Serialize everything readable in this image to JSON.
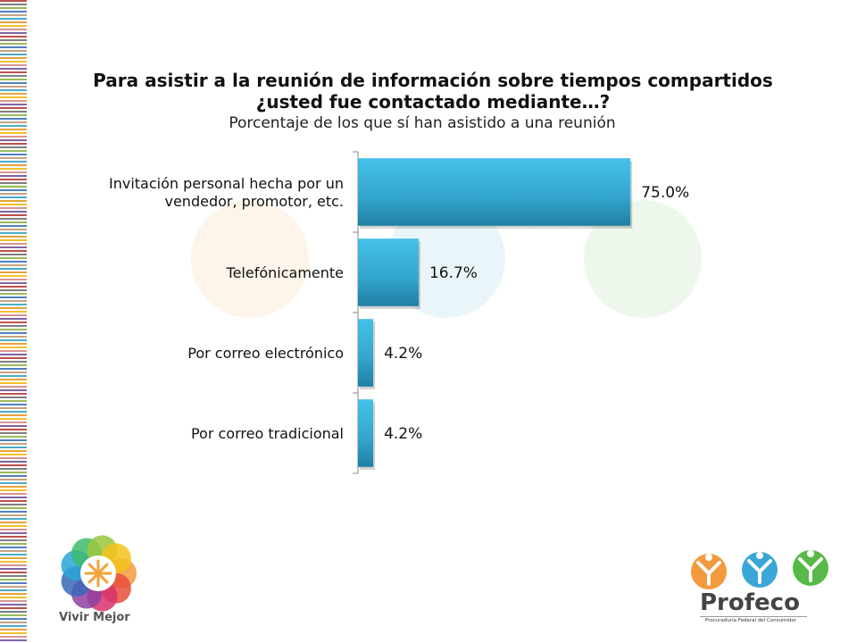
{
  "chart_data": {
    "type": "bar",
    "orientation": "horizontal",
    "title": "Para asistir a la reunión de información sobre tiempos compartidos ¿usted fue contactado mediante…?",
    "title_lines": [
      "Para asistir a la reunión de información sobre tiempos compartidos",
      "¿usted fue contactado mediante…?"
    ],
    "subtitle": "Porcentaje de los que sí han asistido a una reunión",
    "categories": [
      [
        "Invitación personal hecha por un",
        "vendedor, promotor, etc."
      ],
      [
        "Telefónicamente"
      ],
      [
        "Por correo electrónico"
      ],
      [
        "Por correo tradicional"
      ]
    ],
    "values": [
      75.0,
      16.7,
      4.2,
      4.2
    ],
    "value_labels": [
      "75.0%",
      "16.7%",
      "4.2%",
      "4.2%"
    ],
    "xlim": [
      0,
      100
    ],
    "grid": false,
    "legend": "none",
    "bar_color": "#3bb3d8",
    "bar_color_dark": "#1f7fa3"
  },
  "branding": {
    "left_logo_text": "Vivir Mejor",
    "right_logo_name": "Profeco",
    "right_logo_subtitle": "Procuraduría Federal del Consumidor"
  }
}
